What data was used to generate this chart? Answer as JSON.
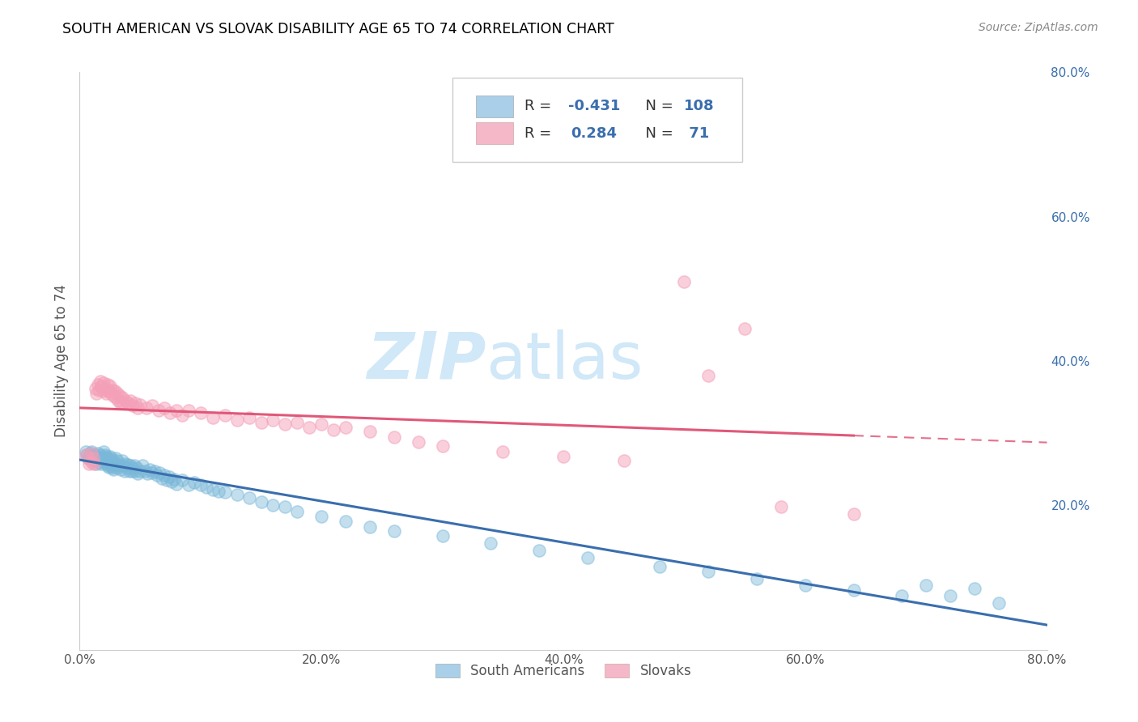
{
  "title": "SOUTH AMERICAN VS SLOVAK DISABILITY AGE 65 TO 74 CORRELATION CHART",
  "source": "Source: ZipAtlas.com",
  "ylabel": "Disability Age 65 to 74",
  "xlim": [
    0.0,
    0.8
  ],
  "ylim": [
    0.0,
    0.8
  ],
  "xtick_labels": [
    "0.0%",
    "20.0%",
    "40.0%",
    "60.0%",
    "80.0%"
  ],
  "xtick_vals": [
    0.0,
    0.2,
    0.4,
    0.6,
    0.8
  ],
  "ytick_labels": [
    "20.0%",
    "40.0%",
    "60.0%",
    "80.0%"
  ],
  "ytick_vals": [
    0.2,
    0.4,
    0.6,
    0.8
  ],
  "south_american_color": "#7ab8d9",
  "slovak_color": "#f4a0b8",
  "blue_line_color": "#3a6ead",
  "pink_line_color": "#e05878",
  "watermark_color": "#d0e8f8",
  "background_color": "#ffffff",
  "grid_color": "#cccccc",
  "title_color": "#000000",
  "right_ytick_color": "#3a6ead",
  "sa_R": -0.431,
  "sa_N": 108,
  "sk_R": 0.284,
  "sk_N": 71,
  "sa_legend_color": "#aacfe8",
  "sk_legend_color": "#f4b8c8",
  "south_american_x": [
    0.005,
    0.006,
    0.007,
    0.008,
    0.009,
    0.01,
    0.01,
    0.011,
    0.012,
    0.013,
    0.014,
    0.015,
    0.015,
    0.016,
    0.016,
    0.017,
    0.017,
    0.018,
    0.018,
    0.019,
    0.02,
    0.02,
    0.021,
    0.021,
    0.022,
    0.022,
    0.023,
    0.023,
    0.024,
    0.024,
    0.025,
    0.025,
    0.026,
    0.026,
    0.027,
    0.027,
    0.028,
    0.028,
    0.029,
    0.03,
    0.03,
    0.031,
    0.031,
    0.032,
    0.033,
    0.034,
    0.035,
    0.036,
    0.037,
    0.038,
    0.039,
    0.04,
    0.041,
    0.042,
    0.043,
    0.044,
    0.045,
    0.046,
    0.047,
    0.048,
    0.05,
    0.052,
    0.054,
    0.056,
    0.058,
    0.06,
    0.062,
    0.064,
    0.066,
    0.068,
    0.07,
    0.072,
    0.074,
    0.076,
    0.078,
    0.08,
    0.085,
    0.09,
    0.095,
    0.1,
    0.105,
    0.11,
    0.115,
    0.12,
    0.13,
    0.14,
    0.15,
    0.16,
    0.17,
    0.18,
    0.2,
    0.22,
    0.24,
    0.26,
    0.3,
    0.34,
    0.38,
    0.42,
    0.48,
    0.52,
    0.56,
    0.6,
    0.64,
    0.68,
    0.7,
    0.72,
    0.74,
    0.76
  ],
  "south_american_y": [
    0.275,
    0.27,
    0.265,
    0.268,
    0.272,
    0.275,
    0.268,
    0.262,
    0.27,
    0.265,
    0.258,
    0.272,
    0.265,
    0.268,
    0.26,
    0.27,
    0.263,
    0.266,
    0.258,
    0.262,
    0.275,
    0.265,
    0.27,
    0.26,
    0.268,
    0.258,
    0.266,
    0.255,
    0.263,
    0.253,
    0.268,
    0.258,
    0.265,
    0.254,
    0.262,
    0.252,
    0.26,
    0.25,
    0.258,
    0.265,
    0.255,
    0.262,
    0.252,
    0.258,
    0.255,
    0.25,
    0.262,
    0.255,
    0.248,
    0.258,
    0.252,
    0.256,
    0.248,
    0.255,
    0.248,
    0.252,
    0.255,
    0.248,
    0.252,
    0.244,
    0.248,
    0.255,
    0.248,
    0.244,
    0.25,
    0.245,
    0.248,
    0.242,
    0.245,
    0.238,
    0.242,
    0.235,
    0.24,
    0.233,
    0.236,
    0.23,
    0.235,
    0.228,
    0.232,
    0.228,
    0.225,
    0.222,
    0.22,
    0.218,
    0.215,
    0.21,
    0.205,
    0.2,
    0.198,
    0.192,
    0.185,
    0.178,
    0.17,
    0.165,
    0.158,
    0.148,
    0.138,
    0.128,
    0.115,
    0.108,
    0.098,
    0.09,
    0.083,
    0.075,
    0.09,
    0.075,
    0.085,
    0.065
  ],
  "slovak_x": [
    0.005,
    0.007,
    0.008,
    0.01,
    0.01,
    0.011,
    0.012,
    0.013,
    0.014,
    0.015,
    0.016,
    0.017,
    0.018,
    0.019,
    0.02,
    0.021,
    0.022,
    0.023,
    0.024,
    0.025,
    0.026,
    0.027,
    0.028,
    0.029,
    0.03,
    0.031,
    0.032,
    0.033,
    0.034,
    0.035,
    0.036,
    0.038,
    0.04,
    0.042,
    0.044,
    0.046,
    0.048,
    0.05,
    0.055,
    0.06,
    0.065,
    0.07,
    0.075,
    0.08,
    0.085,
    0.09,
    0.1,
    0.11,
    0.12,
    0.13,
    0.14,
    0.15,
    0.16,
    0.17,
    0.18,
    0.19,
    0.2,
    0.21,
    0.22,
    0.24,
    0.26,
    0.28,
    0.3,
    0.35,
    0.4,
    0.45,
    0.5,
    0.52,
    0.55,
    0.58,
    0.64
  ],
  "slovak_y": [
    0.27,
    0.265,
    0.258,
    0.272,
    0.26,
    0.265,
    0.258,
    0.362,
    0.355,
    0.368,
    0.36,
    0.372,
    0.365,
    0.358,
    0.37,
    0.362,
    0.355,
    0.368,
    0.358,
    0.365,
    0.355,
    0.36,
    0.352,
    0.358,
    0.35,
    0.355,
    0.345,
    0.352,
    0.342,
    0.35,
    0.342,
    0.345,
    0.342,
    0.345,
    0.338,
    0.342,
    0.335,
    0.34,
    0.335,
    0.338,
    0.332,
    0.335,
    0.328,
    0.332,
    0.325,
    0.332,
    0.328,
    0.322,
    0.325,
    0.318,
    0.322,
    0.315,
    0.318,
    0.312,
    0.315,
    0.308,
    0.312,
    0.305,
    0.308,
    0.302,
    0.295,
    0.288,
    0.282,
    0.275,
    0.268,
    0.262,
    0.51,
    0.38,
    0.445,
    0.198,
    0.188
  ]
}
